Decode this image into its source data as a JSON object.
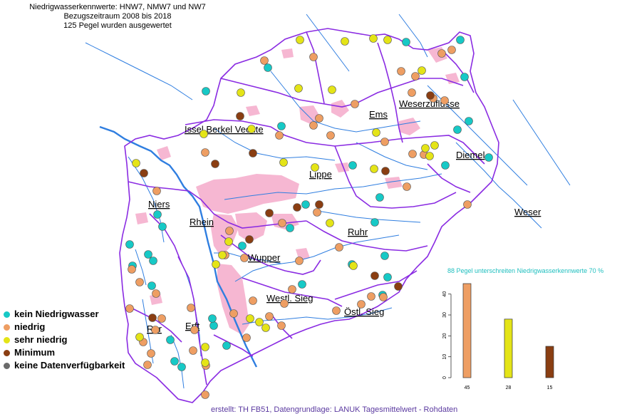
{
  "header": {
    "line1": "Niedrigwasserkennwerte: HNW7, NMW7 und NW7",
    "line2": "Bezugszeitraum 2008 bis 2018",
    "line3": "125 Pegel wurden ausgewertet"
  },
  "colors": {
    "kein": "#17c9c6",
    "niedrig": "#ee9e63",
    "sehr_niedrig": "#e4e417",
    "minimum": "#8a3e12",
    "keine": "#6a6a6a",
    "basin_border": "#8a2be2",
    "river": "#2f7ee0",
    "urban": "#f6b7d2"
  },
  "legend": {
    "items": [
      {
        "key": "kein",
        "label": "kein Niedrigwasser"
      },
      {
        "key": "niedrig",
        "label": "niedrig"
      },
      {
        "key": "sehr_niedrig",
        "label": "sehr niedrig"
      },
      {
        "key": "minimum",
        "label": "Minimum"
      },
      {
        "key": "keine",
        "label": "keine Datenverfügbarkeit"
      }
    ]
  },
  "basins": [
    "Issel Berkel Vechte",
    "Ems",
    "Weserzuflüsse",
    "Diemel",
    "Weser",
    "Lippe",
    "Niers",
    "Rhein",
    "Ruhr",
    "Wupper",
    "Westl. Sieg",
    "Östl. Sieg",
    "Rur",
    "Erft"
  ],
  "stats": {
    "caption": "88 Pegel unterschreiten Niedrigwasserkennwerte 70 %"
  },
  "chart_data": {
    "type": "bar",
    "categories": [
      "45",
      "28",
      "15"
    ],
    "values": [
      45,
      28,
      15
    ],
    "colors": [
      "#ee9e63",
      "#e4e417",
      "#8a3e12"
    ],
    "yticks": [
      0,
      10,
      20,
      30,
      40
    ],
    "ylim": [
      0,
      45
    ]
  },
  "footer": "erstellt: TH FB51, Datengrundlage: LANUK Tagesmittelwert - Rohdaten"
}
